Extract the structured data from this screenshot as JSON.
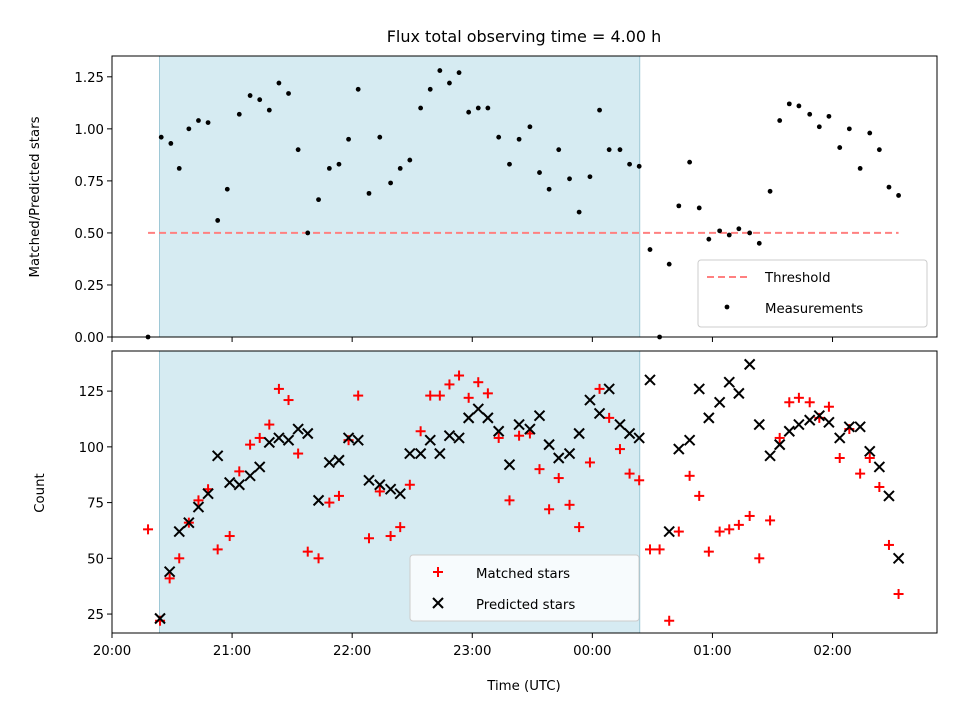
{
  "chart_data": {
    "title": "Flux total observing time = 4.00 h",
    "xlabel": "Time (UTC)",
    "x_tick_labels": [
      "20:00",
      "21:00",
      "22:00",
      "23:00",
      "00:00",
      "01:00",
      "02:00"
    ],
    "x_ticks_hours": [
      20,
      21,
      22,
      23,
      24,
      25,
      26
    ],
    "xlim_hours": [
      20.0,
      26.87
    ],
    "shaded_interval_hours": [
      20.395,
      24.395
    ],
    "shade_color": "#add8e6",
    "panels": [
      {
        "type": "scatter",
        "ylabel": "Matched/Predicted stars",
        "ylim": [
          0,
          1.35
        ],
        "y_ticks": [
          0,
          0.25,
          0.5,
          0.75,
          1.0,
          1.25
        ],
        "y_tick_labels": [
          "0.00",
          "0.25",
          "0.50",
          "0.75",
          "1.00",
          "1.25"
        ],
        "threshold": {
          "name": "Threshold",
          "value": 0.5,
          "x_range": [
            20.3,
            26.55
          ],
          "color": "#ff8080"
        },
        "series": [
          {
            "name": "Measurements",
            "color": "#000000",
            "marker": "dot",
            "points": [
              [
                20.3,
                0.0
              ],
              [
                20.41,
                0.96
              ],
              [
                20.49,
                0.93
              ],
              [
                20.56,
                0.81
              ],
              [
                20.64,
                1.0
              ],
              [
                20.72,
                1.04
              ],
              [
                20.8,
                1.03
              ],
              [
                20.88,
                0.56
              ],
              [
                20.96,
                0.71
              ],
              [
                21.06,
                1.07
              ],
              [
                21.15,
                1.16
              ],
              [
                21.23,
                1.14
              ],
              [
                21.31,
                1.09
              ],
              [
                21.39,
                1.22
              ],
              [
                21.47,
                1.17
              ],
              [
                21.55,
                0.9
              ],
              [
                21.63,
                0.5
              ],
              [
                21.72,
                0.66
              ],
              [
                21.81,
                0.81
              ],
              [
                21.89,
                0.83
              ],
              [
                21.97,
                0.95
              ],
              [
                22.05,
                1.19
              ],
              [
                22.14,
                0.69
              ],
              [
                22.23,
                0.96
              ],
              [
                22.32,
                0.74
              ],
              [
                22.4,
                0.81
              ],
              [
                22.48,
                0.85
              ],
              [
                22.57,
                1.1
              ],
              [
                22.65,
                1.19
              ],
              [
                22.73,
                1.28
              ],
              [
                22.81,
                1.22
              ],
              [
                22.89,
                1.27
              ],
              [
                22.97,
                1.08
              ],
              [
                23.05,
                1.1
              ],
              [
                23.13,
                1.1
              ],
              [
                23.22,
                0.96
              ],
              [
                23.31,
                0.83
              ],
              [
                23.39,
                0.95
              ],
              [
                23.48,
                1.01
              ],
              [
                23.56,
                0.79
              ],
              [
                23.64,
                0.71
              ],
              [
                23.72,
                0.9
              ],
              [
                23.81,
                0.76
              ],
              [
                23.89,
                0.6
              ],
              [
                23.98,
                0.77
              ],
              [
                24.06,
                1.09
              ],
              [
                24.14,
                0.9
              ],
              [
                24.23,
                0.9
              ],
              [
                24.31,
                0.83
              ],
              [
                24.39,
                0.82
              ],
              [
                24.48,
                0.42
              ],
              [
                24.56,
                0.0
              ],
              [
                24.64,
                0.35
              ],
              [
                24.72,
                0.63
              ],
              [
                24.81,
                0.84
              ],
              [
                24.89,
                0.62
              ],
              [
                24.97,
                0.47
              ],
              [
                25.06,
                0.51
              ],
              [
                25.14,
                0.49
              ],
              [
                25.22,
                0.52
              ],
              [
                25.31,
                0.5
              ],
              [
                25.39,
                0.45
              ],
              [
                25.48,
                0.7
              ],
              [
                25.56,
                1.04
              ],
              [
                25.64,
                1.12
              ],
              [
                25.72,
                1.11
              ],
              [
                25.81,
                1.07
              ],
              [
                25.89,
                1.01
              ],
              [
                25.97,
                1.06
              ],
              [
                26.06,
                0.91
              ],
              [
                26.14,
                1.0
              ],
              [
                26.23,
                0.81
              ],
              [
                26.31,
                0.98
              ],
              [
                26.39,
                0.9
              ],
              [
                26.47,
                0.72
              ],
              [
                26.55,
                0.68
              ]
            ]
          }
        ],
        "legend": {
          "position": "lower right",
          "entries": [
            "Threshold",
            "Measurements"
          ]
        }
      },
      {
        "type": "scatter",
        "ylabel": "Count",
        "ylim": [
          16.5,
          143
        ],
        "y_ticks": [
          25,
          50,
          75,
          100,
          125
        ],
        "y_tick_labels": [
          "25",
          "50",
          "75",
          "100",
          "125"
        ],
        "series": [
          {
            "name": "Matched stars",
            "color": "#ff0000",
            "marker": "plus",
            "points": [
              [
                20.3,
                63
              ],
              [
                20.4,
                22
              ],
              [
                20.48,
                41
              ],
              [
                20.56,
                50
              ],
              [
                20.64,
                66
              ],
              [
                20.72,
                76
              ],
              [
                20.8,
                81
              ],
              [
                20.88,
                54
              ],
              [
                20.98,
                60
              ],
              [
                21.06,
                89
              ],
              [
                21.15,
                101
              ],
              [
                21.23,
                104
              ],
              [
                21.31,
                110
              ],
              [
                21.39,
                126
              ],
              [
                21.47,
                121
              ],
              [
                21.55,
                97
              ],
              [
                21.63,
                53
              ],
              [
                21.72,
                50
              ],
              [
                21.81,
                75
              ],
              [
                21.89,
                78
              ],
              [
                21.97,
                103
              ],
              [
                22.05,
                123
              ],
              [
                22.14,
                59
              ],
              [
                22.23,
                80
              ],
              [
                22.32,
                60
              ],
              [
                22.4,
                64
              ],
              [
                22.48,
                83
              ],
              [
                22.57,
                107
              ],
              [
                22.65,
                123
              ],
              [
                22.73,
                123
              ],
              [
                22.81,
                128
              ],
              [
                22.89,
                132
              ],
              [
                22.97,
                122
              ],
              [
                23.05,
                129
              ],
              [
                23.13,
                124
              ],
              [
                23.22,
                104
              ],
              [
                23.31,
                76
              ],
              [
                23.39,
                105
              ],
              [
                23.48,
                106
              ],
              [
                23.56,
                90
              ],
              [
                23.64,
                72
              ],
              [
                23.72,
                86
              ],
              [
                23.81,
                74
              ],
              [
                23.89,
                64
              ],
              [
                23.98,
                93
              ],
              [
                24.06,
                126
              ],
              [
                24.14,
                113
              ],
              [
                24.23,
                99
              ],
              [
                24.31,
                88
              ],
              [
                24.39,
                85
              ],
              [
                24.48,
                54
              ],
              [
                24.56,
                54
              ],
              [
                24.64,
                22
              ],
              [
                24.72,
                62
              ],
              [
                24.81,
                87
              ],
              [
                24.89,
                78
              ],
              [
                24.97,
                53
              ],
              [
                25.06,
                62
              ],
              [
                25.14,
                63
              ],
              [
                25.22,
                65
              ],
              [
                25.31,
                69
              ],
              [
                25.39,
                50
              ],
              [
                25.48,
                67
              ],
              [
                25.56,
                104
              ],
              [
                25.64,
                120
              ],
              [
                25.72,
                122
              ],
              [
                25.81,
                120
              ],
              [
                25.89,
                113
              ],
              [
                25.97,
                118
              ],
              [
                26.06,
                95
              ],
              [
                26.14,
                108
              ],
              [
                26.23,
                88
              ],
              [
                26.31,
                95
              ],
              [
                26.39,
                82
              ],
              [
                26.47,
                56
              ],
              [
                26.55,
                34
              ]
            ]
          },
          {
            "name": "Predicted stars",
            "color": "#000000",
            "marker": "x",
            "points": [
              [
                20.4,
                23
              ],
              [
                20.48,
                44
              ],
              [
                20.56,
                62
              ],
              [
                20.64,
                66
              ],
              [
                20.72,
                73
              ],
              [
                20.8,
                79
              ],
              [
                20.88,
                96
              ],
              [
                20.98,
                84
              ],
              [
                21.06,
                83
              ],
              [
                21.15,
                87
              ],
              [
                21.23,
                91
              ],
              [
                21.31,
                102
              ],
              [
                21.39,
                104
              ],
              [
                21.47,
                103
              ],
              [
                21.55,
                108
              ],
              [
                21.63,
                106
              ],
              [
                21.72,
                76
              ],
              [
                21.81,
                93
              ],
              [
                21.89,
                94
              ],
              [
                21.97,
                104
              ],
              [
                22.05,
                103
              ],
              [
                22.14,
                85
              ],
              [
                22.23,
                83
              ],
              [
                22.32,
                81
              ],
              [
                22.4,
                79
              ],
              [
                22.48,
                97
              ],
              [
                22.57,
                97
              ],
              [
                22.65,
                103
              ],
              [
                22.73,
                97
              ],
              [
                22.81,
                105
              ],
              [
                22.89,
                104
              ],
              [
                22.97,
                113
              ],
              [
                23.05,
                117
              ],
              [
                23.13,
                113
              ],
              [
                23.22,
                107
              ],
              [
                23.31,
                92
              ],
              [
                23.39,
                110
              ],
              [
                23.48,
                108
              ],
              [
                23.56,
                114
              ],
              [
                23.64,
                101
              ],
              [
                23.72,
                95
              ],
              [
                23.81,
                97
              ],
              [
                23.89,
                106
              ],
              [
                23.98,
                121
              ],
              [
                24.06,
                115
              ],
              [
                24.14,
                126
              ],
              [
                24.23,
                110
              ],
              [
                24.31,
                106
              ],
              [
                24.39,
                104
              ],
              [
                24.48,
                130
              ],
              [
                24.64,
                62
              ],
              [
                24.72,
                99
              ],
              [
                24.81,
                103
              ],
              [
                24.89,
                126
              ],
              [
                24.97,
                113
              ],
              [
                25.06,
                120
              ],
              [
                25.14,
                129
              ],
              [
                25.22,
                124
              ],
              [
                25.31,
                137
              ],
              [
                25.39,
                110
              ],
              [
                25.48,
                96
              ],
              [
                25.56,
                101
              ],
              [
                25.64,
                107
              ],
              [
                25.72,
                110
              ],
              [
                25.81,
                112
              ],
              [
                25.89,
                114
              ],
              [
                25.97,
                111
              ],
              [
                26.06,
                104
              ],
              [
                26.14,
                109
              ],
              [
                26.23,
                109
              ],
              [
                26.31,
                98
              ],
              [
                26.39,
                91
              ],
              [
                26.47,
                78
              ],
              [
                26.55,
                50
              ]
            ]
          }
        ],
        "legend": {
          "position": "lower center",
          "entries": [
            "Matched stars",
            "Predicted stars"
          ]
        }
      }
    ]
  }
}
